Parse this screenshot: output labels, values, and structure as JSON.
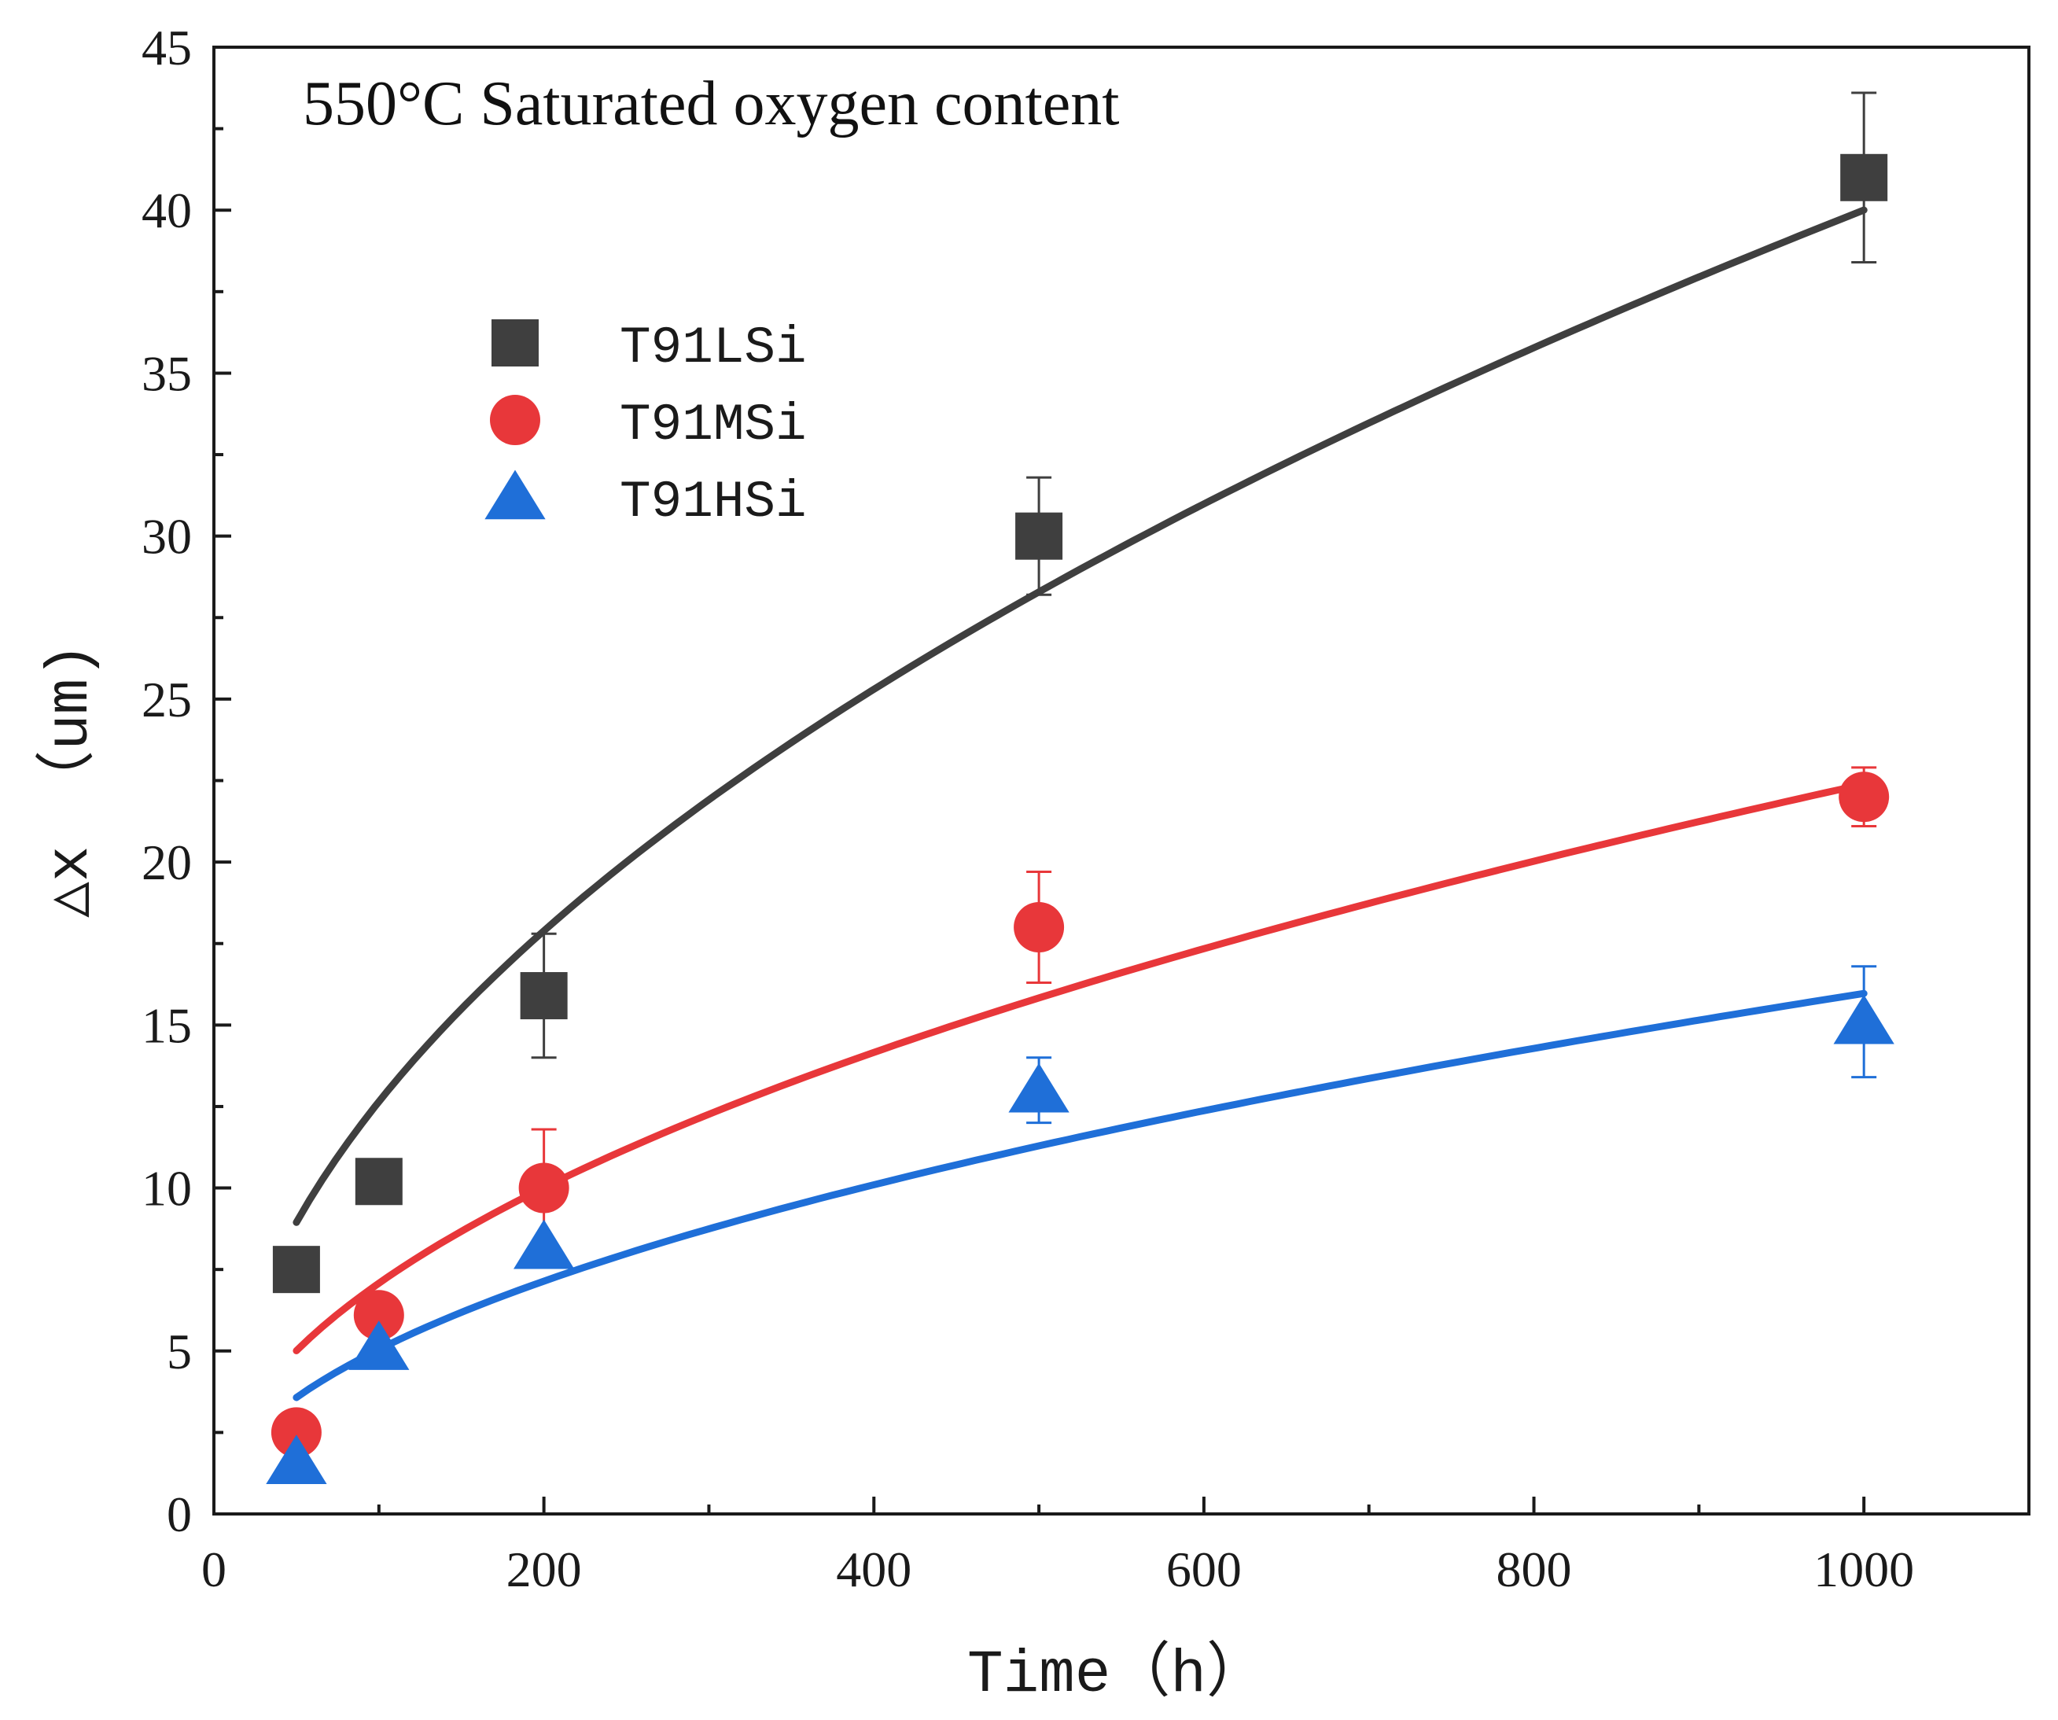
{
  "chart_data": {
    "type": "scatter",
    "title": "",
    "annotation": "550°C  Saturated oxygen content",
    "xlabel": "Time（h）",
    "ylabel": "△x （um)",
    "xlim": [
      0,
      1100
    ],
    "ylim": [
      0,
      45
    ],
    "xticks": [
      0,
      200,
      400,
      600,
      800,
      1000
    ],
    "xminor": [
      100,
      300,
      500,
      700,
      900
    ],
    "yticks": [
      0,
      5,
      10,
      15,
      20,
      25,
      30,
      35,
      40,
      45
    ],
    "grid": false,
    "legend_position": "upper-left",
    "series": [
      {
        "name": "T91LSi",
        "marker": "square",
        "color": "#3f3f3f",
        "x": [
          50,
          100,
          200,
          500,
          1000
        ],
        "y": [
          7.5,
          10.2,
          15.9,
          30.0,
          41.0
        ],
        "err": [
          null,
          null,
          1.9,
          1.8,
          2.6
        ],
        "fit": {
          "form": "a*sqrt(t)",
          "a": 1.265,
          "x_start": 50,
          "x_end": 1000
        }
      },
      {
        "name": "T91MSi",
        "marker": "circle",
        "color": "#e8373a",
        "x": [
          50,
          100,
          200,
          500,
          1000
        ],
        "y": [
          2.5,
          6.1,
          10.0,
          18.0,
          22.0
        ],
        "err": [
          null,
          null,
          1.8,
          1.7,
          0.9
        ],
        "fit": {
          "form": "a*sqrt(t)",
          "a": 0.708,
          "x_start": 50,
          "x_end": 1000
        }
      },
      {
        "name": "T91HSi",
        "marker": "triangle",
        "color": "#1f6fd8",
        "x": [
          50,
          100,
          200,
          500,
          1000
        ],
        "y": [
          1.6,
          5.1,
          8.2,
          13.0,
          15.1
        ],
        "err": [
          null,
          null,
          null,
          1.0,
          1.7
        ],
        "fit": {
          "form": "a*sqrt(t)",
          "a": 0.505,
          "x_start": 50,
          "x_end": 1000
        }
      }
    ]
  }
}
